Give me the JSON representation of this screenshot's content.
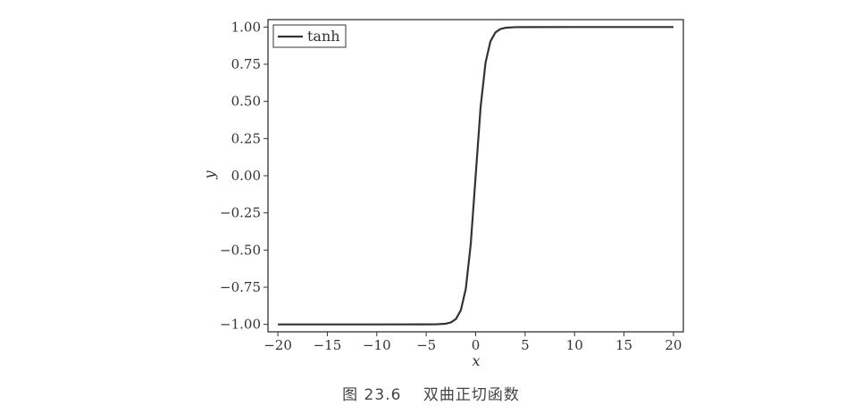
{
  "chart_data": {
    "type": "line",
    "xlabel": "x",
    "ylabel": "y",
    "xlim": [
      -21,
      21
    ],
    "ylim": [
      -1.05,
      1.05
    ],
    "xticks": [
      -20,
      -15,
      -10,
      -5,
      0,
      5,
      10,
      15,
      20
    ],
    "yticks": [
      1.0,
      0.75,
      0.5,
      0.25,
      0.0,
      -0.25,
      -0.5,
      -0.75,
      -1.0
    ],
    "xtick_labels": [
      "−20",
      "−15",
      "−10",
      "−5",
      "0",
      "5",
      "10",
      "15",
      "20"
    ],
    "ytick_labels": [
      "1.00",
      "0.75",
      "0.50",
      "0.25",
      "0.00",
      "−0.25",
      "−0.50",
      "−0.75",
      "−1.00"
    ],
    "grid": false,
    "legend_position": "top-left",
    "series": [
      {
        "name": "tanh",
        "color": "#333333",
        "x": [
          -20,
          -15,
          -10,
          -5,
          -4,
          -3,
          -2.5,
          -2,
          -1.5,
          -1,
          -0.5,
          0,
          0.5,
          1,
          1.5,
          2,
          2.5,
          3,
          4,
          5,
          10,
          15,
          20
        ],
        "y": [
          -1.0,
          -1.0,
          -1.0,
          -0.9999,
          -0.9993,
          -0.9951,
          -0.9866,
          -0.964,
          -0.9051,
          -0.7616,
          -0.4621,
          0.0,
          0.4621,
          0.7616,
          0.9051,
          0.964,
          0.9866,
          0.9951,
          0.9993,
          0.9999,
          1.0,
          1.0,
          1.0
        ]
      }
    ]
  },
  "caption": "图 23.6　 双曲正切函数"
}
